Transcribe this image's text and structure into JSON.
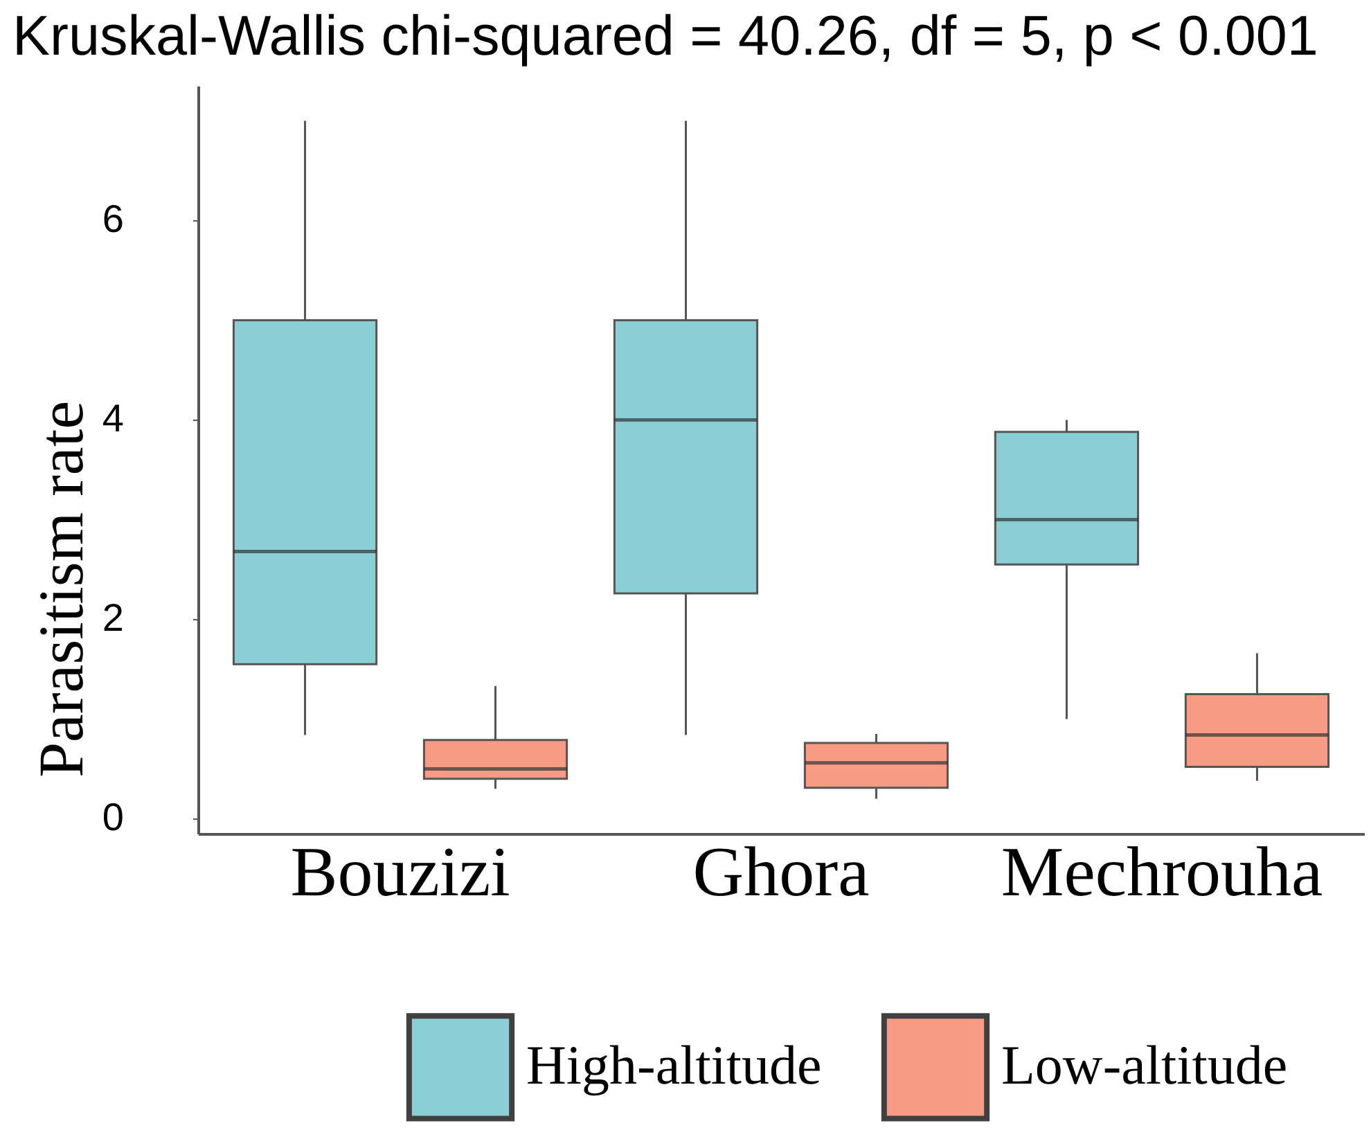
{
  "chart_data": {
    "type": "box",
    "title": "Kruskal-Wallis chi-squared = 40.26, df = 5, p < 0.001",
    "ylabel": "Parasitism rate",
    "categories": [
      "Bouzizi",
      "Ghora",
      "Mechrouha"
    ],
    "series": [
      {
        "name": "High-altitude",
        "color": "#8acfd6",
        "boxes": [
          {
            "low": 0.84,
            "q1": 1.55,
            "median": 2.68,
            "q3": 5.0,
            "high": 7.0
          },
          {
            "low": 0.84,
            "q1": 2.26,
            "median": 4.0,
            "q3": 5.0,
            "high": 7.0
          },
          {
            "low": 1.0,
            "q1": 2.55,
            "median": 3.0,
            "q3": 3.88,
            "high": 4.0
          }
        ]
      },
      {
        "name": "Low-altitude",
        "color": "#f89b85",
        "boxes": [
          {
            "low": 0.3,
            "q1": 0.4,
            "median": 0.5,
            "q3": 0.79,
            "high": 1.33
          },
          {
            "low": 0.2,
            "q1": 0.31,
            "median": 0.56,
            "q3": 0.76,
            "high": 0.85
          },
          {
            "low": 0.38,
            "q1": 0.52,
            "median": 0.84,
            "q3": 1.25,
            "high": 1.66
          }
        ]
      }
    ],
    "ylim": [
      -0.15,
      7.35
    ],
    "yticks": [
      0,
      2,
      4,
      6
    ],
    "grid": false,
    "legend": "bottom"
  }
}
